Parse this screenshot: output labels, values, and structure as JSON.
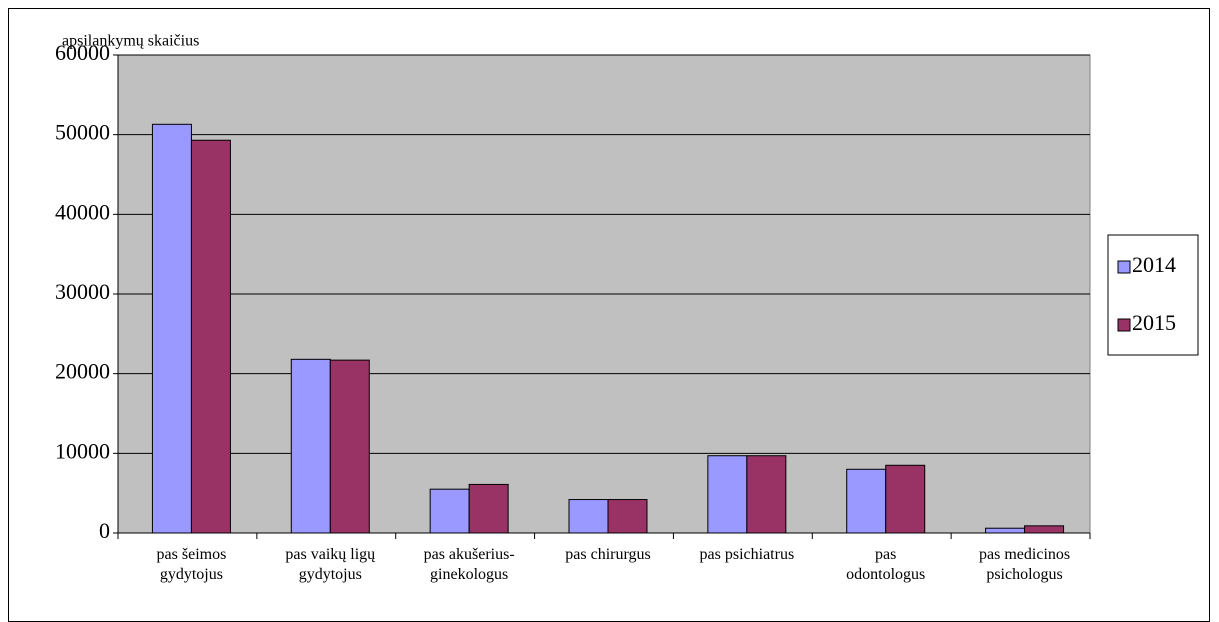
{
  "chart_data": {
    "type": "bar",
    "y_label": "apsilankymų skaičius",
    "categories": [
      "pas šeimos\ngydytojus",
      "pas vaikų ligų\ngydytojus",
      "pas akušerius-\nginekologus",
      "pas chirurgus",
      "pas psichiatrus",
      "pas\nodontologus",
      "pas medicinos\npsichologus"
    ],
    "series": [
      {
        "name": "2014",
        "color": "#9999ff",
        "values": [
          51300,
          21800,
          5500,
          4200,
          9700,
          8000,
          600
        ]
      },
      {
        "name": "2015",
        "color": "#993366",
        "values": [
          49300,
          21700,
          6100,
          4200,
          9700,
          8500,
          900
        ]
      }
    ],
    "ylim": [
      0,
      60000
    ],
    "yticks": [
      0,
      10000,
      20000,
      30000,
      40000,
      50000,
      60000
    ],
    "grid": true,
    "legend": "right",
    "plot_background": "#c0c0c0"
  }
}
